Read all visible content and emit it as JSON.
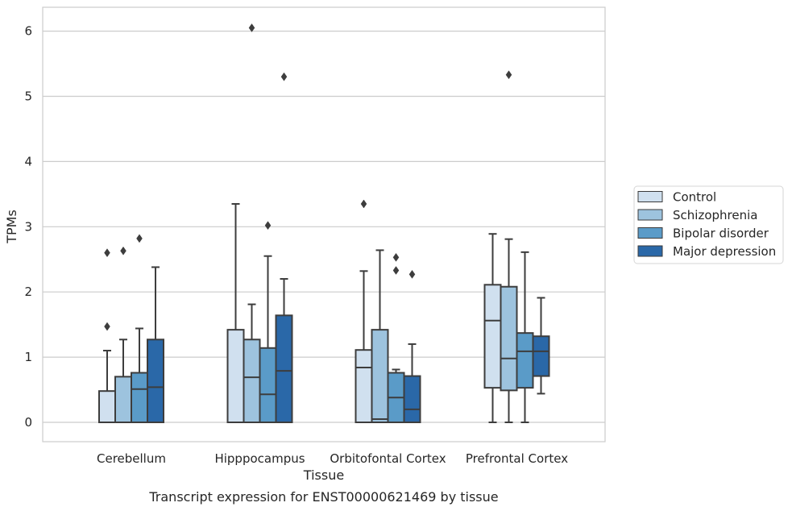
{
  "chart_data": {
    "type": "box",
    "title": "Transcript expression for ENST00000621469 by tissue",
    "xlabel": "Tissue",
    "ylabel": "TPMs",
    "ylim": [
      -0.3,
      6.35
    ],
    "yticks": [
      "0",
      "1",
      "2",
      "3",
      "4",
      "5",
      "6"
    ],
    "grid": true,
    "legend_position": "right",
    "categories": [
      "Cerebellum",
      "Hipppocampus",
      "Orbitofontal Cortex",
      "Prefrontal Cortex"
    ],
    "series": [
      {
        "name": "Control",
        "color": "#d0e0ef",
        "boxes": [
          {
            "q1": 0,
            "median": 0,
            "q3": 0.48,
            "whislo": 0,
            "whishi": 1.1,
            "fliers": [
              1.47,
              2.6
            ]
          },
          {
            "q1": 0,
            "median": 0,
            "q3": 1.42,
            "whislo": 0,
            "whishi": 3.35,
            "fliers": []
          },
          {
            "q1": 0,
            "median": 0.84,
            "q3": 1.11,
            "whislo": 0,
            "whishi": 2.32,
            "fliers": [
              3.35
            ]
          },
          {
            "q1": 0.53,
            "median": 1.56,
            "q3": 2.11,
            "whislo": 0,
            "whishi": 2.89,
            "fliers": []
          }
        ]
      },
      {
        "name": "Schizophrenia",
        "color": "#9dc3de",
        "boxes": [
          {
            "q1": 0,
            "median": 0,
            "q3": 0.7,
            "whislo": 0,
            "whishi": 1.27,
            "fliers": [
              2.63
            ]
          },
          {
            "q1": 0,
            "median": 0.69,
            "q3": 1.27,
            "whislo": 0,
            "whishi": 1.81,
            "fliers": [
              6.05
            ]
          },
          {
            "q1": 0,
            "median": 0.05,
            "q3": 1.42,
            "whislo": 0,
            "whishi": 2.64,
            "fliers": []
          },
          {
            "q1": 0.49,
            "median": 0.98,
            "q3": 2.08,
            "whislo": 0,
            "whishi": 2.81,
            "fliers": [
              5.33
            ]
          }
        ]
      },
      {
        "name": "Bipolar disorder",
        "color": "#5a9bc8",
        "boxes": [
          {
            "q1": 0,
            "median": 0.51,
            "q3": 0.76,
            "whislo": 0,
            "whishi": 1.44,
            "fliers": [
              2.82
            ]
          },
          {
            "q1": 0,
            "median": 0.43,
            "q3": 1.14,
            "whislo": 0,
            "whishi": 2.55,
            "fliers": [
              3.02
            ]
          },
          {
            "q1": 0,
            "median": 0.38,
            "q3": 0.76,
            "whislo": 0,
            "whishi": 0.81,
            "fliers": [
              2.33,
              2.53
            ]
          },
          {
            "q1": 0.53,
            "median": 1.09,
            "q3": 1.37,
            "whislo": 0,
            "whishi": 2.61,
            "fliers": []
          }
        ]
      },
      {
        "name": "Major depression",
        "color": "#2a68a8",
        "boxes": [
          {
            "q1": 0,
            "median": 0.54,
            "q3": 1.27,
            "whislo": 0,
            "whishi": 2.38,
            "fliers": []
          },
          {
            "q1": 0,
            "median": 0.79,
            "q3": 1.64,
            "whislo": 0,
            "whishi": 2.2,
            "fliers": [
              5.3
            ]
          },
          {
            "q1": 0,
            "median": 0.2,
            "q3": 0.71,
            "whislo": 0,
            "whishi": 1.2,
            "fliers": [
              2.27
            ]
          },
          {
            "q1": 0.71,
            "median": 1.09,
            "q3": 1.32,
            "whislo": 0.44,
            "whishi": 1.91,
            "fliers": []
          }
        ]
      }
    ]
  },
  "style": {
    "edge_color": "#3d3d3d",
    "grid_color": "#cccccc",
    "spine_color": "#cccccc",
    "background": "#ffffff"
  }
}
